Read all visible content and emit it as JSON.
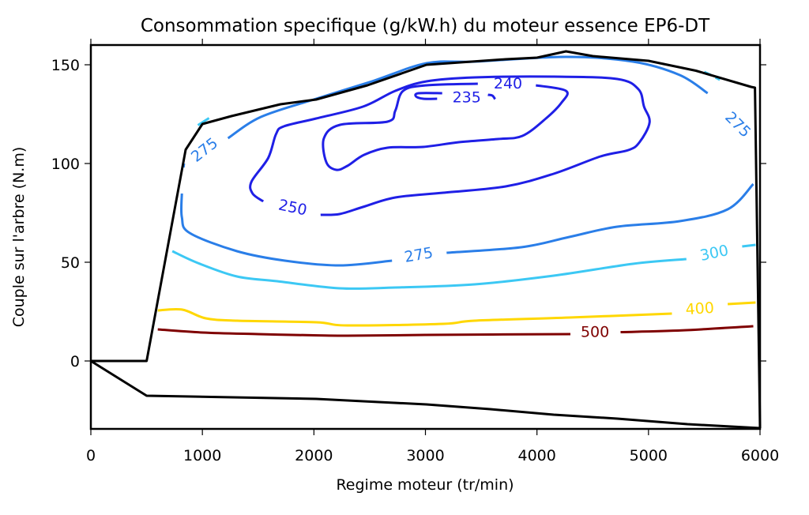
{
  "chart_data": {
    "type": "contour",
    "title": "Consommation specifique (g/kW.h) du moteur essence EP6-DT",
    "xlabel": "Regime moteur (tr/min)",
    "ylabel": "Couple sur l'arbre (N.m)",
    "xlim": [
      0,
      6000
    ],
    "ylim": [
      -34.4,
      160
    ],
    "xticks": [
      0,
      1000,
      2000,
      3000,
      4000,
      5000,
      6000
    ],
    "xtick_labels": [
      "0",
      "1000",
      "2000",
      "3000",
      "4000",
      "5000",
      "6000"
    ],
    "yticks": [
      0,
      50,
      100,
      150
    ],
    "ytick_labels": [
      "0",
      "50",
      "100",
      "150"
    ],
    "grid": false,
    "legend": "none",
    "boundaries": [
      {
        "name": "full-load-curve",
        "color": "#000000",
        "points": [
          [
            0,
            0
          ],
          [
            500,
            0
          ],
          [
            850,
            107
          ],
          [
            1000,
            120
          ],
          [
            1260,
            124
          ],
          [
            1700,
            130
          ],
          [
            2020,
            132.4
          ],
          [
            2480,
            139.6
          ],
          [
            3010,
            150
          ],
          [
            3720,
            152.8
          ],
          [
            4000,
            153.6
          ],
          [
            4260,
            156.8
          ],
          [
            4500,
            154.4
          ],
          [
            5000,
            152
          ],
          [
            5425,
            147
          ],
          [
            5920,
            138.8
          ],
          [
            5955,
            138.4
          ],
          [
            6000,
            -34
          ]
        ]
      },
      {
        "name": "motoring-curve",
        "color": "#000000",
        "points": [
          [
            0,
            0
          ],
          [
            500,
            -17.6
          ],
          [
            2020,
            -19.2
          ],
          [
            3010,
            -22
          ],
          [
            3580,
            -24.4
          ],
          [
            4150,
            -27.2
          ],
          [
            4720,
            -29.2
          ],
          [
            5350,
            -32
          ],
          [
            6000,
            -34
          ]
        ]
      }
    ],
    "contours": [
      {
        "level": 500,
        "color": "#7f0000",
        "segments": [
          [
            [
              600,
              16
            ],
            [
              1000,
              14.4
            ],
            [
              1500,
              13.6
            ],
            [
              2000,
              13
            ],
            [
              2300,
              12.8
            ],
            [
              3000,
              13.2
            ],
            [
              3600,
              13.4
            ],
            [
              4300,
              13.6
            ]
          ],
          [
            [
              4750,
              14.6
            ],
            [
              5300,
              15.5
            ],
            [
              5940,
              17.6
            ]
          ]
        ],
        "labels": [
          {
            "text": "500",
            "at": [
              4520,
              14.6
            ],
            "angle": 0
          }
        ]
      },
      {
        "level": 400,
        "color": "#ffd700",
        "segments": [
          [
            [
              600,
              25.6
            ],
            [
              820,
              26
            ],
            [
              1030,
              21.6
            ],
            [
              1310,
              20.4
            ],
            [
              2020,
              19.6
            ],
            [
              2300,
              18
            ],
            [
              3160,
              18.8
            ],
            [
              3440,
              20.4
            ],
            [
              4290,
              22
            ],
            [
              5210,
              24
            ]
          ],
          [
            [
              5710,
              28.8
            ],
            [
              5960,
              29.6
            ]
          ]
        ],
        "labels": [
          {
            "text": "400",
            "at": [
              5460,
              26.4
            ],
            "angle": -4
          }
        ]
      },
      {
        "level": 300,
        "color": "#3cc8f4",
        "segments": [
          [
            [
              730,
              55.6
            ],
            [
              960,
              49.6
            ],
            [
              1310,
              42.8
            ],
            [
              1670,
              40.4
            ],
            [
              2230,
              36.8
            ],
            [
              2730,
              37.2
            ],
            [
              3440,
              38.8
            ],
            [
              4150,
              43.2
            ],
            [
              4860,
              49.2
            ],
            [
              5340,
              51.6
            ]
          ],
          [
            [
              5840,
              58
            ],
            [
              5960,
              58.8
            ]
          ],
          [
            [
              960,
              119.4
            ],
            [
              1060,
              123
            ]
          ],
          [
            [
              5500,
              146.4
            ],
            [
              5560,
              144.8
            ]
          ],
          [
            [
              5600,
              143.6
            ],
            [
              5640,
              142.4
            ]
          ]
        ],
        "labels": [
          {
            "text": "300",
            "at": [
              5590,
              54.6
            ],
            "angle": -12
          }
        ]
      },
      {
        "level": 275,
        "color": "#2a7ee8",
        "segments": [
          [
            [
              816,
              84.8
            ],
            [
              816,
              72.8
            ],
            [
              887,
              64.8
            ],
            [
              1310,
              55.6
            ],
            [
              1740,
              50.8
            ],
            [
              2230,
              48.4
            ],
            [
              2700,
              50.8
            ]
          ],
          [
            [
              3190,
              54.8
            ],
            [
              3860,
              57.6
            ],
            [
              4290,
              62.8
            ],
            [
              4720,
              68
            ],
            [
              5280,
              70.8
            ],
            [
              5710,
              76.8
            ],
            [
              5940,
              89.6
            ]
          ],
          [
            [
              1230,
              112.8
            ],
            [
              1525,
              123.6
            ],
            [
              2020,
              132.8
            ],
            [
              2520,
              141.6
            ],
            [
              3010,
              150.8
            ],
            [
              3440,
              151.6
            ],
            [
              4260,
              154
            ],
            [
              4860,
              151.6
            ],
            [
              5280,
              144.8
            ],
            [
              5530,
              135.6
            ]
          ],
          [
            [
              830,
              98
            ],
            [
              835,
              100
            ]
          ]
        ],
        "labels": [
          {
            "text": "275",
            "at": [
              2940,
              53.6
            ],
            "angle": -10
          },
          {
            "text": "275",
            "at": [
              1020,
              106.8
            ],
            "angle": -38
          },
          {
            "text": "275",
            "at": [
              5800,
              119.6
            ],
            "angle": 45
          }
        ]
      },
      {
        "level": 250,
        "color": "#1f1fe6",
        "segments": [
          [
            [
              1546,
              80.8
            ],
            [
              1450,
              84.8
            ],
            [
              1440,
              90.8
            ],
            [
              1590,
              102.8
            ],
            [
              1660,
              114.8
            ],
            [
              1730,
              118.8
            ],
            [
              2020,
              122.8
            ],
            [
              2440,
              128.8
            ],
            [
              2730,
              136.8
            ],
            [
              3010,
              141.6
            ],
            [
              3440,
              143.6
            ],
            [
              4150,
              144
            ],
            [
              4720,
              142.8
            ],
            [
              4910,
              137.6
            ],
            [
              4960,
              128.8
            ],
            [
              5010,
              120.8
            ],
            [
              4920,
              110.8
            ],
            [
              4820,
              106.8
            ],
            [
              4570,
              103.6
            ],
            [
              4150,
              94.8
            ],
            [
              3720,
              88.4
            ],
            [
              3160,
              85.2
            ],
            [
              2730,
              82.8
            ],
            [
              2440,
              78
            ],
            [
              2230,
              74.4
            ],
            [
              2060,
              74
            ]
          ]
        ],
        "labels": [
          {
            "text": "250",
            "at": [
              1810,
              77.6
            ],
            "angle": 12
          }
        ]
      },
      {
        "level": 240,
        "color": "#1f1fe6",
        "segments": [
          [
            [
              3470,
              140.4
            ],
            [
              3010,
              139.6
            ],
            [
              2800,
              136.8
            ],
            [
              2730,
              126.8
            ],
            [
              2660,
              121.2
            ],
            [
              2235,
              119.6
            ],
            [
              2090,
              112.8
            ],
            [
              2110,
              100.8
            ],
            [
              2200,
              96.8
            ],
            [
              2300,
              98.8
            ],
            [
              2450,
              104.4
            ],
            [
              2660,
              108
            ],
            [
              2980,
              108.4
            ],
            [
              3300,
              110.8
            ],
            [
              3650,
              112.4
            ],
            [
              3870,
              114
            ],
            [
              4080,
              122.8
            ],
            [
              4220,
              130.8
            ],
            [
              4260,
              136.8
            ],
            [
              3990,
              139.6
            ]
          ]
        ],
        "labels": [
          {
            "text": "240",
            "at": [
              3740,
              140.4
            ],
            "angle": 0
          }
        ]
      },
      {
        "level": 235,
        "color": "#1f1fe6",
        "segments": [
          [
            [
              3150,
              135.6
            ],
            [
              2940,
              135.6
            ],
            [
              2915,
              134
            ],
            [
              2980,
              132.8
            ],
            [
              3105,
              132.8
            ]
          ],
          [
            [
              3560,
              134.8
            ],
            [
              3600,
              134.4
            ],
            [
              3625,
              132.6
            ]
          ]
        ],
        "labels": [
          {
            "text": "235",
            "at": [
              3370,
              133.4
            ],
            "angle": 0
          }
        ]
      }
    ]
  }
}
